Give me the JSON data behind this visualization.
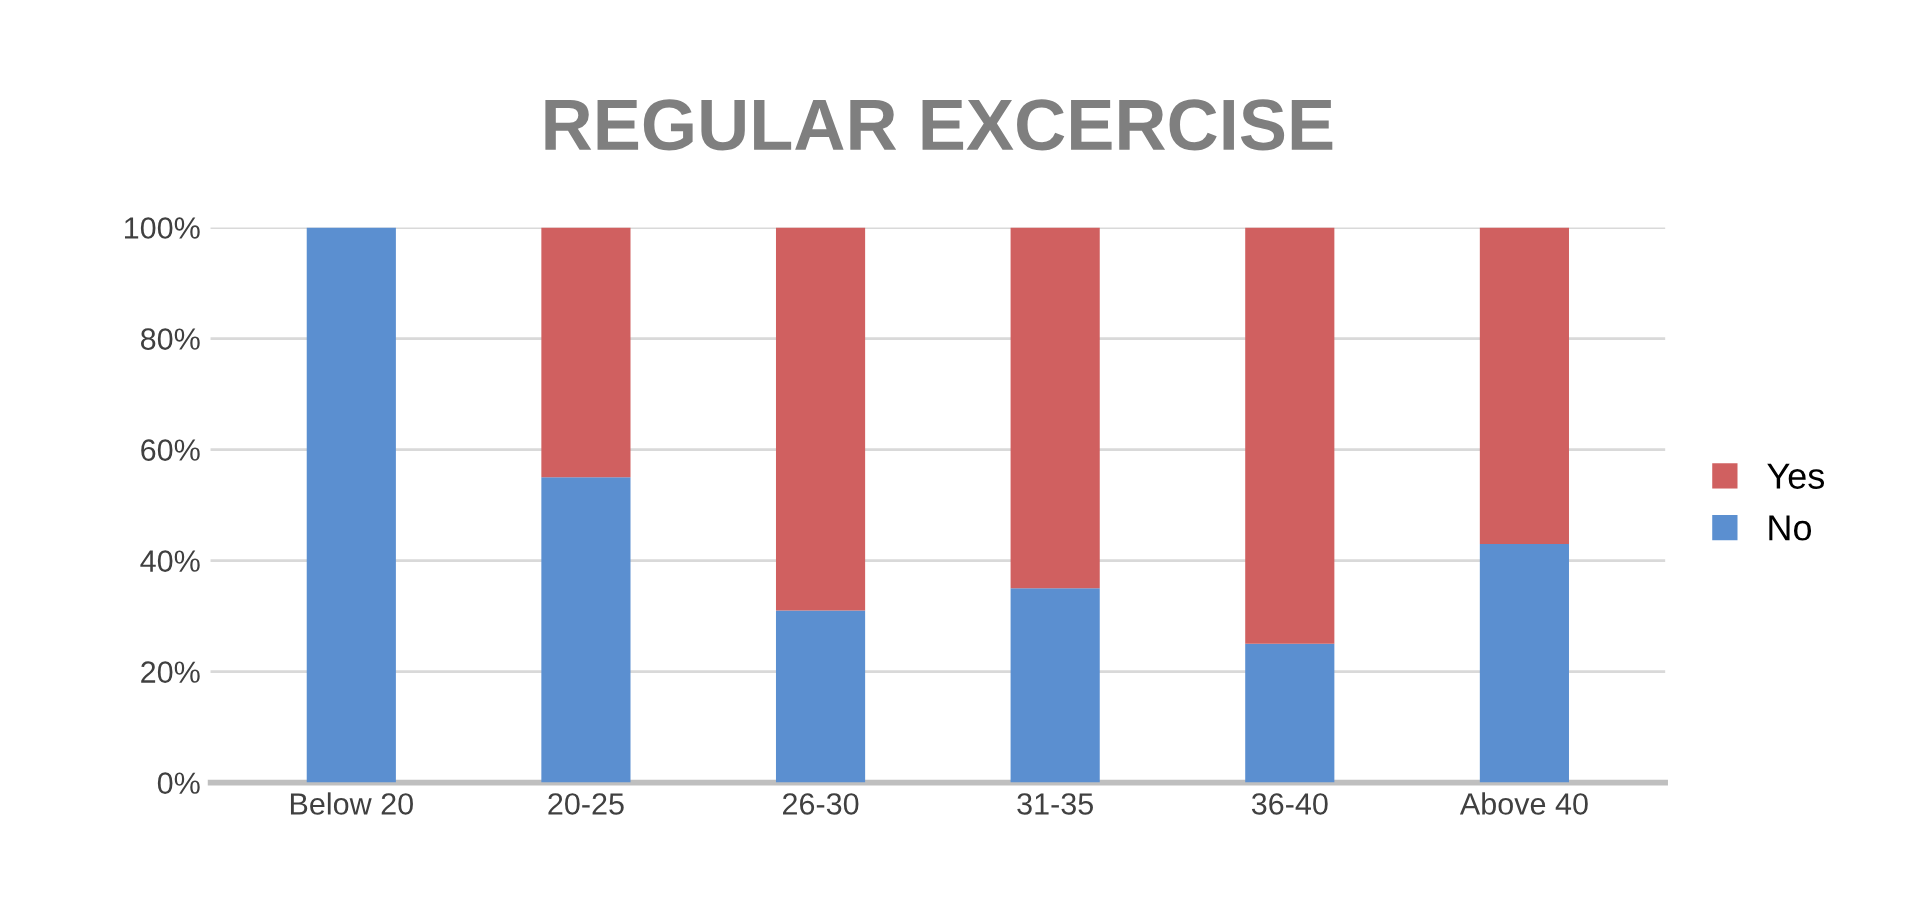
{
  "chart_data": {
    "type": "bar",
    "title": "REGULAR EXCERCISE",
    "stacked": true,
    "categories": [
      "Below 20",
      "20-25",
      "26-30",
      "31-35",
      "36-40",
      "Above 40"
    ],
    "series": [
      {
        "name": "No",
        "color": "#5b8fd0",
        "values": [
          100,
          55,
          31,
          35,
          25,
          43
        ]
      },
      {
        "name": "Yes",
        "color": "#d06060",
        "values": [
          0,
          45,
          69,
          65,
          75,
          57
        ]
      }
    ],
    "ylim": [
      0,
      100
    ],
    "yticks": [
      {
        "value": 0,
        "label": "0%"
      },
      {
        "value": 20,
        "label": "20%"
      },
      {
        "value": 40,
        "label": "40%"
      },
      {
        "value": 60,
        "label": "60%"
      },
      {
        "value": 80,
        "label": "80%"
      },
      {
        "value": 100,
        "label": "100%"
      }
    ],
    "grid": "y",
    "legend": "right"
  }
}
